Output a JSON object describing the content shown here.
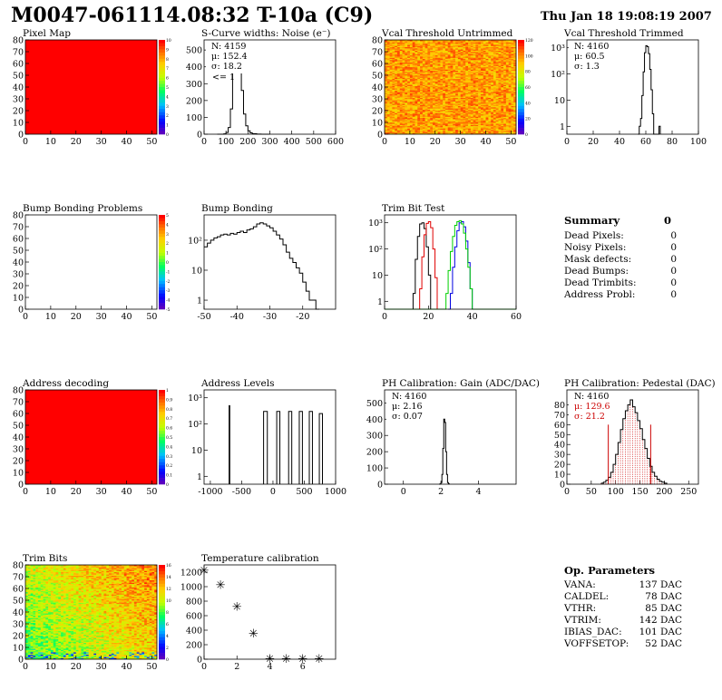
{
  "header": {
    "title": "M0047-061114.08:32 T-10a (C9)",
    "date": "Thu Jan 18 19:08:19 2007"
  },
  "colors": {
    "map_red": "#ff0000",
    "hist_line": "#000000",
    "trim_red": "#e00000",
    "trim_blue": "#0000e0",
    "trim_green": "#00d000",
    "pedestal_red": "#cc0000"
  },
  "summary": {
    "title": "Summary",
    "total": "0",
    "rows": [
      {
        "label": "Dead Pixels:",
        "value": "0"
      },
      {
        "label": "Noisy Pixels:",
        "value": "0"
      },
      {
        "label": "Mask defects:",
        "value": "0"
      },
      {
        "label": "Dead Bumps:",
        "value": "0"
      },
      {
        "label": "Dead Trimbits:",
        "value": "0"
      },
      {
        "label": "Address Probl:",
        "value": "0"
      }
    ]
  },
  "op_params": {
    "title": "Op. Parameters",
    "rows": [
      {
        "label": "VANA:",
        "value": "137 DAC"
      },
      {
        "label": "CALDEL:",
        "value": "78 DAC"
      },
      {
        "label": "VTHR:",
        "value": "85 DAC"
      },
      {
        "label": "VTRIM:",
        "value": "142 DAC"
      },
      {
        "label": "IBIAS_DAC:",
        "value": "101 DAC"
      },
      {
        "label": "VOFFSETOP:",
        "value": "52 DAC"
      }
    ]
  },
  "chart_data": [
    {
      "id": "pixel_map",
      "type": "heatmap",
      "title": "Pixel Map",
      "xlim": [
        0,
        52
      ],
      "ylim": [
        0,
        80
      ],
      "xticks": [
        "0",
        "10",
        "20",
        "30",
        "40",
        "50"
      ],
      "yticks": [
        "0",
        "10",
        "20",
        "30",
        "40",
        "50",
        "60",
        "70",
        "80"
      ],
      "fill": "uniform",
      "value": 10,
      "colorbar_ticks": [
        "10",
        "9",
        "8",
        "7",
        "6",
        "5",
        "4",
        "3",
        "2",
        "1",
        "0"
      ]
    },
    {
      "id": "scurve_widths",
      "type": "line",
      "title": "S-Curve widths: Noise (e⁻)",
      "xlim": [
        0,
        600
      ],
      "ylim": [
        0,
        560
      ],
      "xticks": [
        "0",
        "100",
        "200",
        "300",
        "400",
        "500",
        "600"
      ],
      "yticks": [
        "0",
        "100",
        "200",
        "300",
        "400",
        "500"
      ],
      "stats": [
        "N: 4159",
        "μ: 152.4",
        "σ: 18.2"
      ],
      "annotation": "<= 1",
      "x": [
        60,
        80,
        90,
        100,
        110,
        120,
        130,
        140,
        150,
        160,
        170,
        180,
        190,
        200,
        210,
        220,
        240,
        260,
        300
      ],
      "y": [
        0,
        0,
        2,
        10,
        40,
        150,
        380,
        520,
        510,
        440,
        260,
        120,
        50,
        20,
        8,
        3,
        1,
        0,
        0
      ]
    },
    {
      "id": "vcal_untrimmed",
      "type": "heatmap",
      "title": "Vcal Threshold Untrimmed",
      "xlim": [
        0,
        52
      ],
      "ylim": [
        0,
        80
      ],
      "xticks": [
        "0",
        "10",
        "20",
        "30",
        "40",
        "50"
      ],
      "yticks": [
        "0",
        "10",
        "20",
        "30",
        "40",
        "50",
        "60",
        "70",
        "80"
      ],
      "fill": "noise",
      "mean_level": 0.82,
      "colorbar_ticks": [
        "120",
        "100",
        "80",
        "60",
        "40",
        "20",
        "0"
      ]
    },
    {
      "id": "vcal_trimmed",
      "type": "line",
      "title": "Vcal Threshold Trimmed",
      "log_y": true,
      "xlim": [
        0,
        100
      ],
      "ylim": [
        0.5,
        2000
      ],
      "xticks": [
        "0",
        "20",
        "40",
        "60",
        "80",
        "100"
      ],
      "yticks": [
        "1",
        "10",
        "10²",
        "10³"
      ],
      "stats": [
        "N: 4160",
        "μ: 60.5",
        "σ: 1.3"
      ],
      "x": [
        54,
        55,
        56,
        57,
        58,
        59,
        60,
        61,
        62,
        63,
        64,
        65,
        66,
        67,
        68,
        69,
        70,
        71
      ],
      "y": [
        0,
        1,
        2,
        15,
        120,
        650,
        1200,
        1100,
        600,
        150,
        25,
        3,
        0,
        0,
        0,
        0,
        1,
        0
      ]
    },
    {
      "id": "bump_problems",
      "type": "heatmap",
      "title": "Bump Bonding Problems",
      "xlim": [
        0,
        52
      ],
      "ylim": [
        0,
        80
      ],
      "xticks": [
        "0",
        "10",
        "20",
        "30",
        "40",
        "50"
      ],
      "yticks": [
        "0",
        "10",
        "20",
        "30",
        "40",
        "50",
        "60",
        "70",
        "80"
      ],
      "fill": "empty",
      "colorbar_ticks": [
        "5",
        "4",
        "3",
        "2",
        "1",
        "0",
        "-1",
        "-2",
        "-3",
        "-4",
        "-5"
      ]
    },
    {
      "id": "bump_bonding",
      "type": "line",
      "title": "Bump Bonding",
      "log_y": true,
      "xlim": [
        -50,
        -10
      ],
      "ylim": [
        0.5,
        700
      ],
      "xticks": [
        "-50",
        "-40",
        "-30",
        "-20"
      ],
      "yticks": [
        "1",
        "10",
        "10²"
      ],
      "x": [
        -50,
        -49,
        -48,
        -47,
        -46,
        -45,
        -44,
        -43,
        -42,
        -41,
        -40,
        -39,
        -38,
        -37,
        -36,
        -35,
        -34,
        -33,
        -32,
        -31,
        -30,
        -29,
        -28,
        -27,
        -26,
        -25,
        -24,
        -23,
        -22,
        -21,
        -20,
        -19,
        -18,
        -17,
        -16,
        -15
      ],
      "y": [
        60,
        80,
        100,
        120,
        130,
        150,
        160,
        150,
        170,
        160,
        180,
        200,
        180,
        220,
        240,
        280,
        350,
        380,
        350,
        300,
        260,
        200,
        150,
        110,
        70,
        40,
        25,
        18,
        12,
        8,
        4,
        2,
        1,
        1,
        0.5,
        0.5
      ]
    },
    {
      "id": "trim_bit_test",
      "type": "line",
      "title": "Trim Bit Test",
      "log_y": true,
      "xlim": [
        0,
        60
      ],
      "ylim": [
        0.5,
        2000
      ],
      "xticks": [
        "0",
        "20",
        "40",
        "60"
      ],
      "yticks": [
        "1",
        "10",
        "10²",
        "10³"
      ],
      "series": [
        {
          "color": "#000000",
          "x": [
            12,
            13,
            14,
            15,
            16,
            17,
            18,
            19,
            20,
            21,
            22
          ],
          "y": [
            0.5,
            2,
            40,
            300,
            900,
            1000,
            600,
            120,
            10,
            0.5,
            0.5
          ]
        },
        {
          "color": "#e00000",
          "x": [
            15,
            16,
            17,
            18,
            19,
            20,
            21,
            22,
            23,
            24,
            25
          ],
          "y": [
            0.5,
            3,
            50,
            350,
            950,
            1100,
            650,
            100,
            8,
            0.5,
            0.5
          ]
        },
        {
          "color": "#0000e0",
          "x": [
            29,
            30,
            31,
            32,
            33,
            34,
            35,
            36,
            37,
            38,
            39,
            40,
            41
          ],
          "y": [
            0.5,
            2,
            20,
            120,
            500,
            1000,
            1100,
            700,
            200,
            30,
            3,
            0.5,
            0.5
          ]
        },
        {
          "color": "#00d000",
          "x": [
            0,
            27,
            28,
            29,
            30,
            31,
            32,
            33,
            34,
            35,
            36,
            37,
            38,
            39,
            40,
            41,
            42,
            60
          ],
          "y": [
            0.5,
            0.5,
            2,
            15,
            80,
            300,
            800,
            1100,
            1200,
            900,
            400,
            100,
            20,
            3,
            0.5,
            0.5,
            0.5,
            0.5
          ]
        }
      ]
    },
    {
      "id": "address_decoding",
      "type": "heatmap",
      "title": "Address decoding",
      "xlim": [
        0,
        52
      ],
      "ylim": [
        0,
        80
      ],
      "xticks": [
        "0",
        "10",
        "20",
        "30",
        "40",
        "50"
      ],
      "yticks": [
        "0",
        "10",
        "20",
        "30",
        "40",
        "50",
        "60",
        "70",
        "80"
      ],
      "fill": "uniform",
      "value": 1,
      "colorbar_ticks": [
        "1",
        "0.9",
        "0.8",
        "0.7",
        "0.6",
        "0.5",
        "0.4",
        "0.3",
        "0.2",
        "0.1",
        "0"
      ]
    },
    {
      "id": "address_levels",
      "type": "line",
      "title": "Address Levels",
      "log_y": true,
      "xlim": [
        -1100,
        1000
      ],
      "ylim": [
        0.5,
        2000
      ],
      "xticks": [
        "-1000",
        "-500",
        "0",
        "500",
        "1000"
      ],
      "yticks": [
        "1",
        "10",
        "10²",
        "10³"
      ],
      "peaks": [
        {
          "x": [
            -700,
            -690
          ],
          "height": 500
        },
        {
          "x": [
            -150,
            -90
          ],
          "height": 300
        },
        {
          "x": [
            60,
            110
          ],
          "height": 300
        },
        {
          "x": [
            250,
            300
          ],
          "height": 300
        },
        {
          "x": [
            420,
            470
          ],
          "height": 300
        },
        {
          "x": [
            580,
            630
          ],
          "height": 300
        },
        {
          "x": [
            740,
            790
          ],
          "height": 250
        }
      ]
    },
    {
      "id": "ph_gain",
      "type": "line",
      "title": "PH Calibration: Gain (ADC/DAC)",
      "xlim": [
        -1,
        6
      ],
      "ylim": [
        0,
        580
      ],
      "xticks": [
        "0",
        "2",
        "4"
      ],
      "yticks": [
        "0",
        "100",
        "200",
        "300",
        "400",
        "500"
      ],
      "stats": [
        "N: 4160",
        "μ: 2.16",
        "σ: 0.07"
      ],
      "x": [
        1.9,
        1.95,
        2.0,
        2.05,
        2.1,
        2.15,
        2.2,
        2.25,
        2.3,
        2.35,
        2.4,
        2.45
      ],
      "y": [
        0,
        2,
        10,
        60,
        220,
        400,
        380,
        200,
        60,
        10,
        2,
        0
      ]
    },
    {
      "id": "ph_pedestal",
      "type": "line",
      "title": "PH Calibration: Pedestal (DAC)",
      "xlim": [
        0,
        270
      ],
      "ylim": [
        0,
        95
      ],
      "xticks": [
        "0",
        "50",
        "100",
        "150",
        "200",
        "250"
      ],
      "yticks": [
        "0",
        "10",
        "20",
        "30",
        "40",
        "50",
        "60",
        "70",
        "80"
      ],
      "stats": [
        "N: 4160",
        "μ: 129.6",
        "σ: 21.2"
      ],
      "stat_colors": [
        "#000000",
        "#cc0000",
        "#cc0000"
      ],
      "markers": [
        85,
        172
      ],
      "x": [
        70,
        75,
        80,
        85,
        90,
        95,
        100,
        105,
        110,
        115,
        120,
        125,
        130,
        135,
        140,
        145,
        150,
        155,
        160,
        165,
        170,
        175,
        180,
        185,
        190,
        195,
        200,
        205
      ],
      "y": [
        1,
        2,
        4,
        7,
        12,
        20,
        30,
        42,
        55,
        66,
        74,
        80,
        85,
        78,
        72,
        64,
        56,
        45,
        36,
        26,
        18,
        12,
        8,
        5,
        3,
        2,
        1,
        0
      ]
    },
    {
      "id": "trim_bits",
      "type": "heatmap",
      "title": "Trim Bits",
      "xlim": [
        0,
        52
      ],
      "ylim": [
        0,
        80
      ],
      "xticks": [
        "0",
        "10",
        "20",
        "30",
        "40",
        "50"
      ],
      "yticks": [
        "0",
        "10",
        "20",
        "30",
        "40",
        "50",
        "60",
        "70",
        "80"
      ],
      "fill": "gradient",
      "colorbar_ticks": [
        "16",
        "14",
        "12",
        "10",
        "8",
        "6",
        "4",
        "2",
        "0"
      ]
    },
    {
      "id": "temperature_calibration",
      "type": "scatter",
      "title": "Temperature calibration",
      "xlim": [
        0,
        8
      ],
      "ylim": [
        0,
        1300
      ],
      "xticks": [
        "0",
        "2",
        "4",
        "6"
      ],
      "yticks": [
        "0",
        "200",
        "400",
        "600",
        "800",
        "1000",
        "1200"
      ],
      "x": [
        0,
        1,
        2,
        3,
        4,
        5,
        6,
        7
      ],
      "y": [
        1230,
        1030,
        730,
        360,
        10,
        10,
        10,
        10
      ]
    }
  ]
}
